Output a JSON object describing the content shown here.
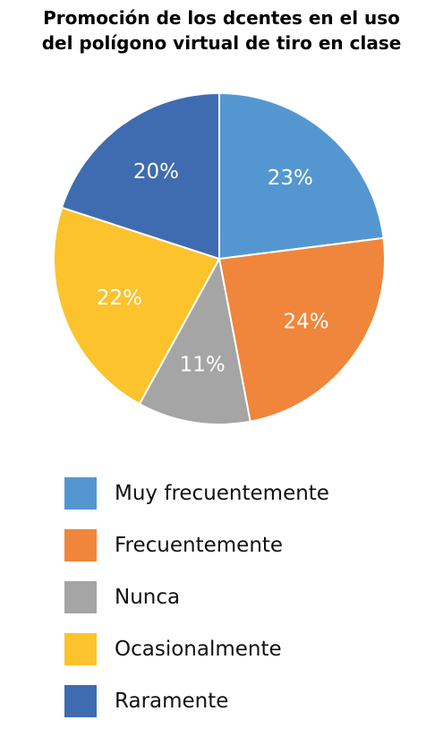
{
  "chart_data": {
    "type": "pie",
    "title_lines": [
      "Promoción de los dcentes en el uso",
      "del polígono virtual de tiro en clase"
    ],
    "categories": [
      "Muy frecuentemente",
      "Frecuentemente",
      "Nunca",
      "Ocasionalmente",
      "Raramente"
    ],
    "values": [
      23,
      24,
      11,
      22,
      20
    ],
    "value_labels": [
      "23%",
      "24%",
      "11%",
      "22%",
      "20%"
    ],
    "colors": [
      "#5497D0",
      "#EF863B",
      "#A5A5A5",
      "#FCC32D",
      "#3F6CB1"
    ],
    "legend_position": "bottom",
    "start_angle": "12 o'clock",
    "direction": "clockwise"
  }
}
